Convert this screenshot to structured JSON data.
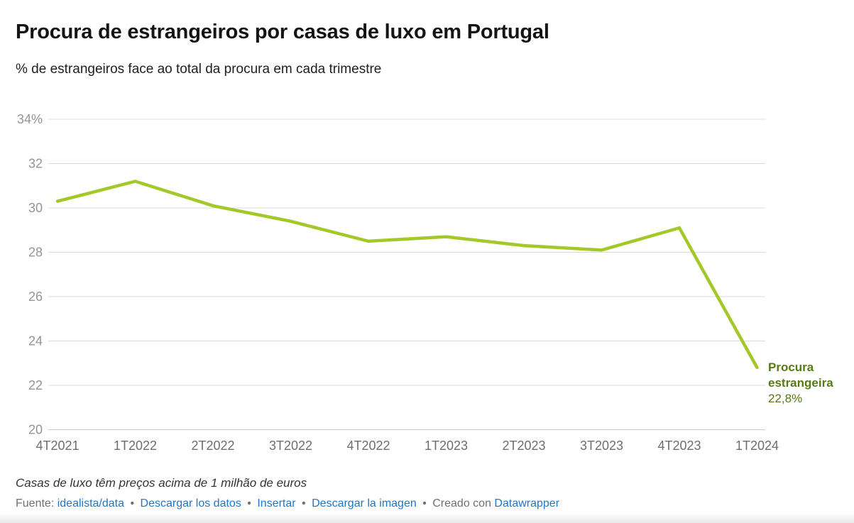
{
  "header": {
    "title": "Procura de estrangeiros por casas de luxo em Portugal",
    "subtitle": "% de estrangeiros face ao total da procura em cada trimestre"
  },
  "chart_data": {
    "type": "line",
    "title": "Procura de estrangeiros por casas de luxo em Portugal",
    "subtitle": "% de estrangeiros face ao total da procura em cada trimestre",
    "categories": [
      "4T2021",
      "1T2022",
      "2T2022",
      "3T2022",
      "4T2022",
      "1T2023",
      "2T2023",
      "3T2023",
      "4T2023",
      "1T2024"
    ],
    "series": [
      {
        "name": "Procura estrangeira",
        "values": [
          30.3,
          31.2,
          30.1,
          29.4,
          28.5,
          28.7,
          28.3,
          28.1,
          29.1,
          22.8
        ]
      }
    ],
    "ylim": [
      20,
      34
    ],
    "yticks": [
      20,
      22,
      24,
      26,
      28,
      30,
      32,
      34
    ],
    "ytick_labels": [
      "20",
      "22",
      "24",
      "26",
      "28",
      "30",
      "32",
      "34%"
    ],
    "grid": "horizontal",
    "legend_position": "end-of-line label",
    "end_label": {
      "name": "Procura estrangeira",
      "value": "22,8%"
    },
    "colors": {
      "line": "#a4c72a",
      "label": "#567a14",
      "gridline": "#dbdbdb",
      "ytick_text": "#949494",
      "xtick_text": "#6e6e6e"
    }
  },
  "footer": {
    "note": "Casas de luxo têm preços acima de 1 milhão de euros",
    "source_prefix": "Fuente:",
    "source_link": "idealista/data",
    "separator": "•",
    "action_links": [
      "Descargar los datos",
      "Insertar",
      "Descargar la imagen"
    ],
    "credit_prefix": "Creado con",
    "credit_link": "Datawrapper",
    "link_color": "#2076c8"
  }
}
